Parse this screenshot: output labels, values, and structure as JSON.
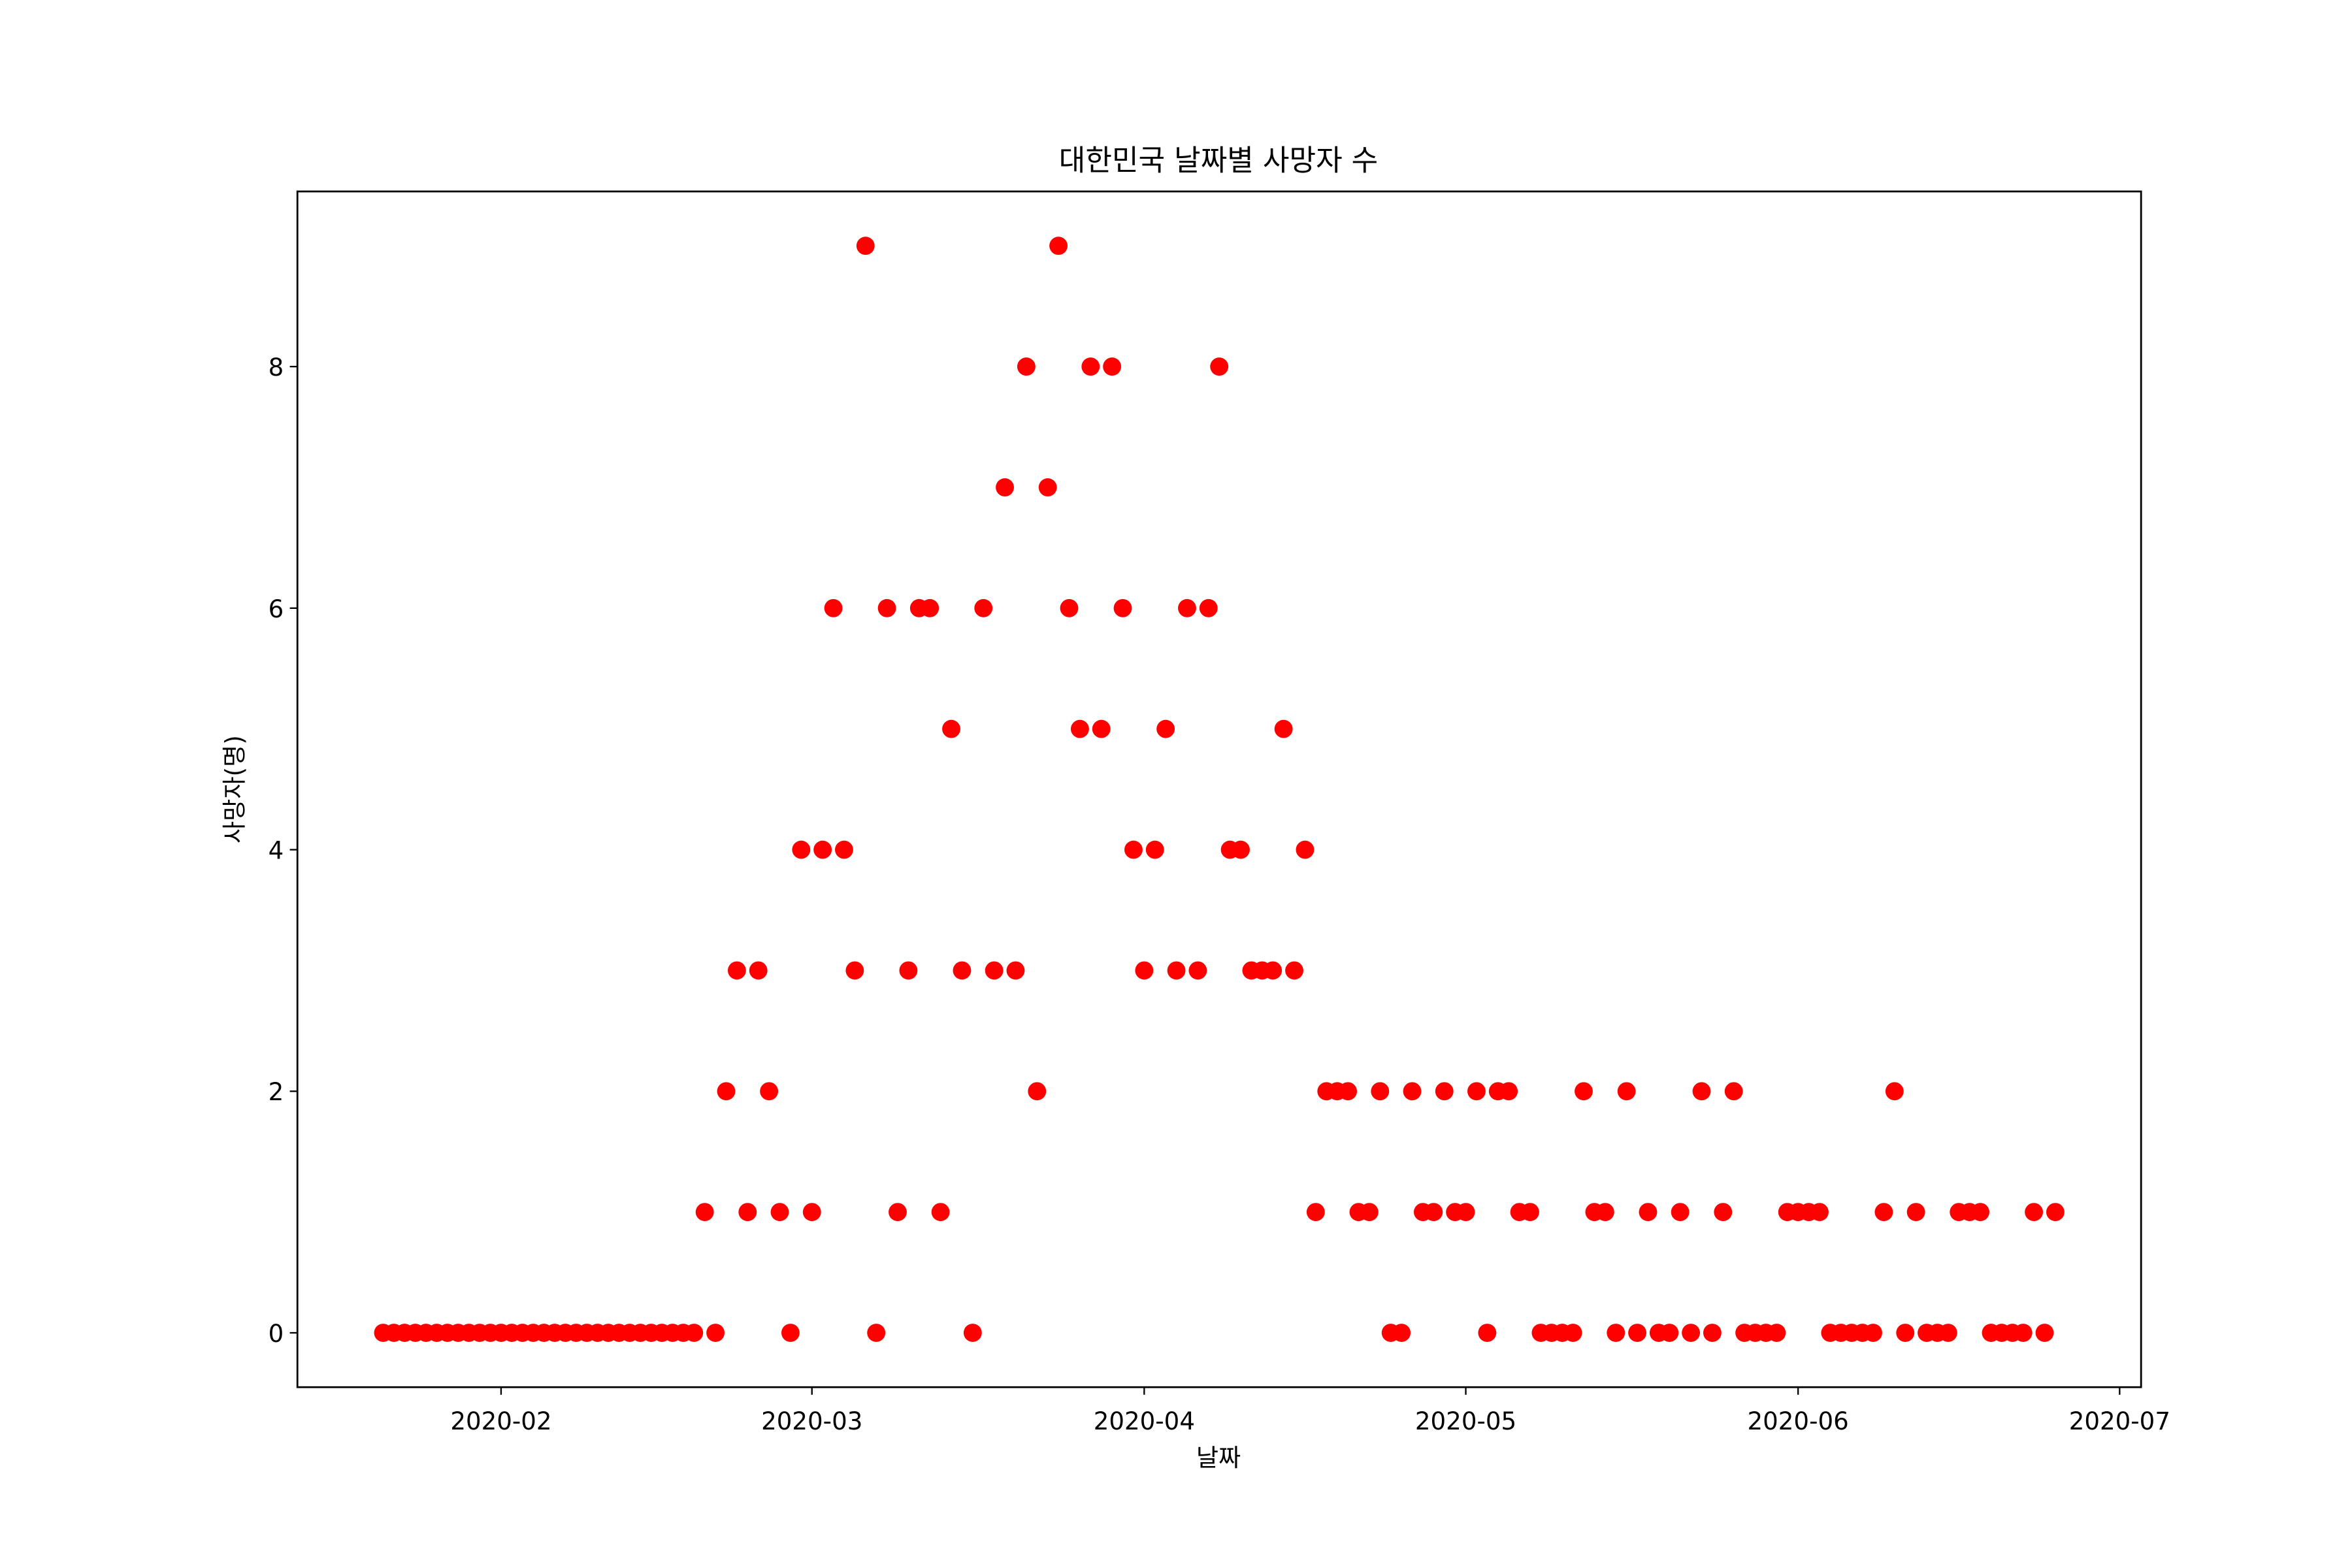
{
  "chart_data": {
    "type": "scatter",
    "title": "대한민국 날짜별 사망자 수",
    "x_label": "날짜",
    "y_label": "사망자(명)",
    "x": [
      "2020-01-21",
      "2020-01-22",
      "2020-01-23",
      "2020-01-24",
      "2020-01-25",
      "2020-01-26",
      "2020-01-27",
      "2020-01-28",
      "2020-01-29",
      "2020-01-30",
      "2020-01-31",
      "2020-02-01",
      "2020-02-02",
      "2020-02-03",
      "2020-02-04",
      "2020-02-05",
      "2020-02-06",
      "2020-02-07",
      "2020-02-08",
      "2020-02-09",
      "2020-02-10",
      "2020-02-11",
      "2020-02-12",
      "2020-02-13",
      "2020-02-14",
      "2020-02-15",
      "2020-02-16",
      "2020-02-17",
      "2020-02-18",
      "2020-02-19",
      "2020-02-20",
      "2020-02-21",
      "2020-02-22",
      "2020-02-23",
      "2020-02-24",
      "2020-02-25",
      "2020-02-26",
      "2020-02-27",
      "2020-02-28",
      "2020-02-29",
      "2020-03-01",
      "2020-03-02",
      "2020-03-03",
      "2020-03-04",
      "2020-03-05",
      "2020-03-06",
      "2020-03-07",
      "2020-03-08",
      "2020-03-09",
      "2020-03-10",
      "2020-03-11",
      "2020-03-12",
      "2020-03-13",
      "2020-03-14",
      "2020-03-15",
      "2020-03-16",
      "2020-03-17",
      "2020-03-18",
      "2020-03-19",
      "2020-03-20",
      "2020-03-21",
      "2020-03-22",
      "2020-03-23",
      "2020-03-24",
      "2020-03-25",
      "2020-03-26",
      "2020-03-27",
      "2020-03-28",
      "2020-03-29",
      "2020-03-30",
      "2020-03-31",
      "2020-04-01",
      "2020-04-02",
      "2020-04-03",
      "2020-04-04",
      "2020-04-05",
      "2020-04-06",
      "2020-04-07",
      "2020-04-08",
      "2020-04-09",
      "2020-04-10",
      "2020-04-11",
      "2020-04-12",
      "2020-04-13",
      "2020-04-14",
      "2020-04-15",
      "2020-04-16",
      "2020-04-17",
      "2020-04-18",
      "2020-04-19",
      "2020-04-20",
      "2020-04-21",
      "2020-04-22",
      "2020-04-23",
      "2020-04-24",
      "2020-04-25",
      "2020-04-26",
      "2020-04-27",
      "2020-04-28",
      "2020-04-29",
      "2020-04-30",
      "2020-05-01",
      "2020-05-02",
      "2020-05-03",
      "2020-05-04",
      "2020-05-05",
      "2020-05-06",
      "2020-05-07",
      "2020-05-08",
      "2020-05-09",
      "2020-05-10",
      "2020-05-11",
      "2020-05-12",
      "2020-05-13",
      "2020-05-14",
      "2020-05-15",
      "2020-05-16",
      "2020-05-17",
      "2020-05-18",
      "2020-05-19",
      "2020-05-20",
      "2020-05-21",
      "2020-05-22",
      "2020-05-23",
      "2020-05-24",
      "2020-05-25",
      "2020-05-26",
      "2020-05-27",
      "2020-05-28",
      "2020-05-29",
      "2020-05-30",
      "2020-05-31",
      "2020-06-01",
      "2020-06-02",
      "2020-06-03",
      "2020-06-04",
      "2020-06-05",
      "2020-06-06",
      "2020-06-07",
      "2020-06-08",
      "2020-06-09",
      "2020-06-10",
      "2020-06-11",
      "2020-06-12",
      "2020-06-13",
      "2020-06-14",
      "2020-06-15",
      "2020-06-16",
      "2020-06-17",
      "2020-06-18",
      "2020-06-19",
      "2020-06-20",
      "2020-06-21",
      "2020-06-22",
      "2020-06-23",
      "2020-06-24",
      "2020-06-25"
    ],
    "values": [
      0,
      0,
      0,
      0,
      0,
      0,
      0,
      0,
      0,
      0,
      0,
      0,
      0,
      0,
      0,
      0,
      0,
      0,
      0,
      0,
      0,
      0,
      0,
      0,
      0,
      0,
      0,
      0,
      0,
      0,
      1,
      0,
      2,
      3,
      1,
      3,
      2,
      1,
      0,
      4,
      1,
      4,
      6,
      4,
      3,
      9,
      0,
      6,
      1,
      3,
      6,
      6,
      1,
      5,
      3,
      0,
      6,
      3,
      7,
      3,
      8,
      2,
      7,
      9,
      6,
      5,
      8,
      5,
      8,
      6,
      4,
      3,
      4,
      5,
      3,
      6,
      3,
      6,
      8,
      4,
      4,
      3,
      3,
      3,
      5,
      3,
      4,
      1,
      2,
      2,
      2,
      1,
      1,
      2,
      0,
      0,
      2,
      1,
      1,
      2,
      1,
      1,
      2,
      0,
      2,
      2,
      1,
      1,
      0,
      0,
      0,
      0,
      2,
      1,
      1,
      0,
      2,
      0,
      1,
      0,
      0,
      1,
      0,
      2,
      0,
      1,
      2,
      0,
      0,
      0,
      0,
      1,
      1,
      1,
      1,
      0,
      0,
      0,
      0,
      0,
      1,
      2,
      0,
      1,
      0,
      0,
      0,
      1,
      1,
      1,
      0,
      0,
      0,
      0,
      1,
      0,
      1
    ],
    "color": "#ff0000",
    "xlim": [
      "2020-01-13",
      "2020-07-03"
    ],
    "xticks": [
      "2020-02",
      "2020-03",
      "2020-04",
      "2020-05",
      "2020-06",
      "2020-07"
    ],
    "ylim": [
      -0.45,
      9.45
    ],
    "yticks": [
      0,
      2,
      4,
      6,
      8
    ]
  }
}
